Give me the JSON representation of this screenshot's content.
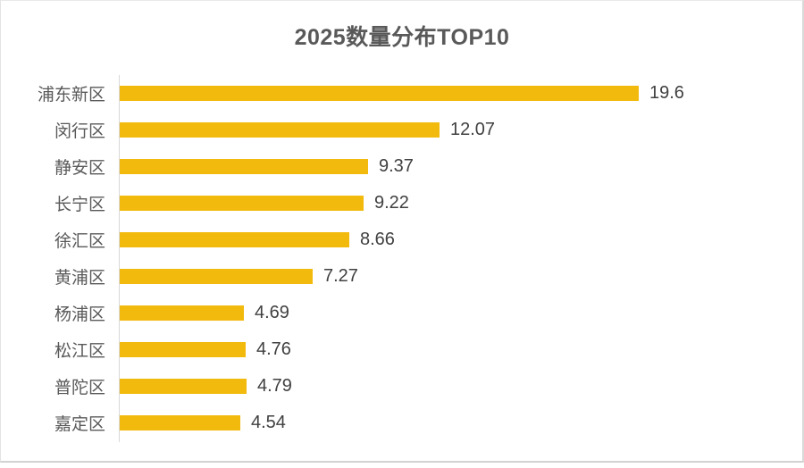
{
  "chart_data": {
    "type": "bar",
    "orientation": "horizontal",
    "title": "2025数量分布TOP10",
    "categories": [
      "浦东新区",
      "闵行区",
      "静安区",
      "长宁区",
      "徐汇区",
      "黄浦区",
      "杨浦区",
      "松江区",
      "普陀区",
      "嘉定区"
    ],
    "values": [
      19.6,
      12.07,
      9.37,
      9.22,
      8.66,
      7.27,
      4.69,
      4.76,
      4.79,
      4.54
    ],
    "value_labels": [
      "19.6",
      "12.07",
      "9.37",
      "9.22",
      "8.66",
      "7.27",
      "4.69",
      "4.76",
      "4.79",
      "4.54"
    ],
    "xlim": [
      0,
      19.6
    ],
    "xlabel": "",
    "ylabel": "",
    "legend": "none",
    "grid": "off",
    "bar_color": "#F2BA0D",
    "axis_line_color": "#d9d9d9",
    "title_color": "#595959",
    "category_label_color": "#595959",
    "value_label_color": "#404040"
  }
}
